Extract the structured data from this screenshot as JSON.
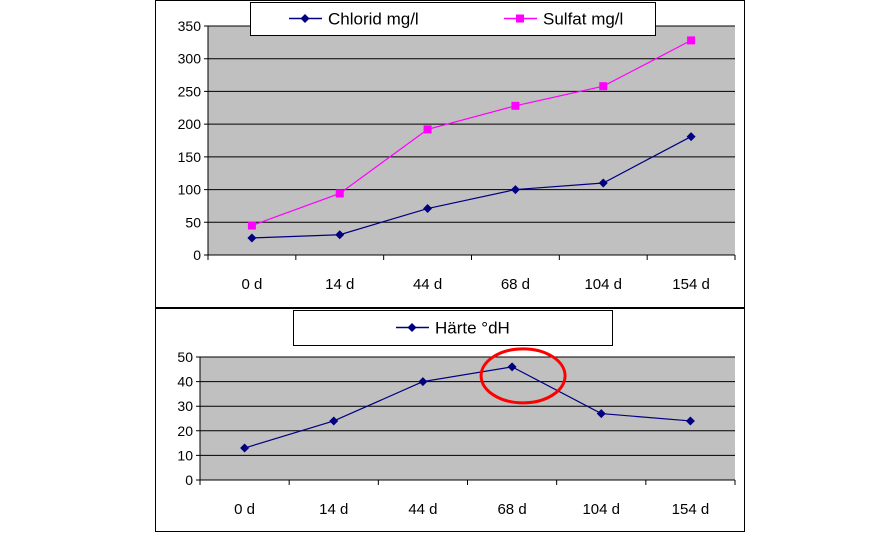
{
  "chart_data": [
    {
      "type": "line",
      "categories": [
        "0 d",
        "14 d",
        "44 d",
        "68 d",
        "104 d",
        "154 d"
      ],
      "series": [
        {
          "name": "Chlorid mg/l",
          "color": "#000080",
          "marker": "diamond",
          "values": [
            26,
            31,
            71,
            100,
            110,
            181
          ]
        },
        {
          "name": "Sulfat mg/l",
          "color": "#ff00ff",
          "marker": "square",
          "values": [
            45,
            94,
            192,
            228,
            258,
            328
          ]
        }
      ],
      "ylim": [
        0,
        350
      ],
      "yticks": [
        0,
        50,
        100,
        150,
        200,
        250,
        300,
        350
      ],
      "grid": true,
      "legend": "top",
      "plot_bg": "#c0c0c0"
    },
    {
      "type": "line",
      "categories": [
        "0 d",
        "14 d",
        "44 d",
        "68 d",
        "104 d",
        "154 d"
      ],
      "series": [
        {
          "name": "Härte °dH",
          "color": "#000080",
          "marker": "diamond",
          "values": [
            13,
            24,
            40,
            46,
            27,
            24
          ]
        }
      ],
      "ylim": [
        0,
        50
      ],
      "yticks": [
        0,
        10,
        20,
        30,
        40,
        50
      ],
      "grid": true,
      "legend": "top",
      "plot_bg": "#c0c0c0",
      "annotation": {
        "type": "ellipse",
        "color": "#ff0000",
        "category": "68 d"
      }
    }
  ]
}
